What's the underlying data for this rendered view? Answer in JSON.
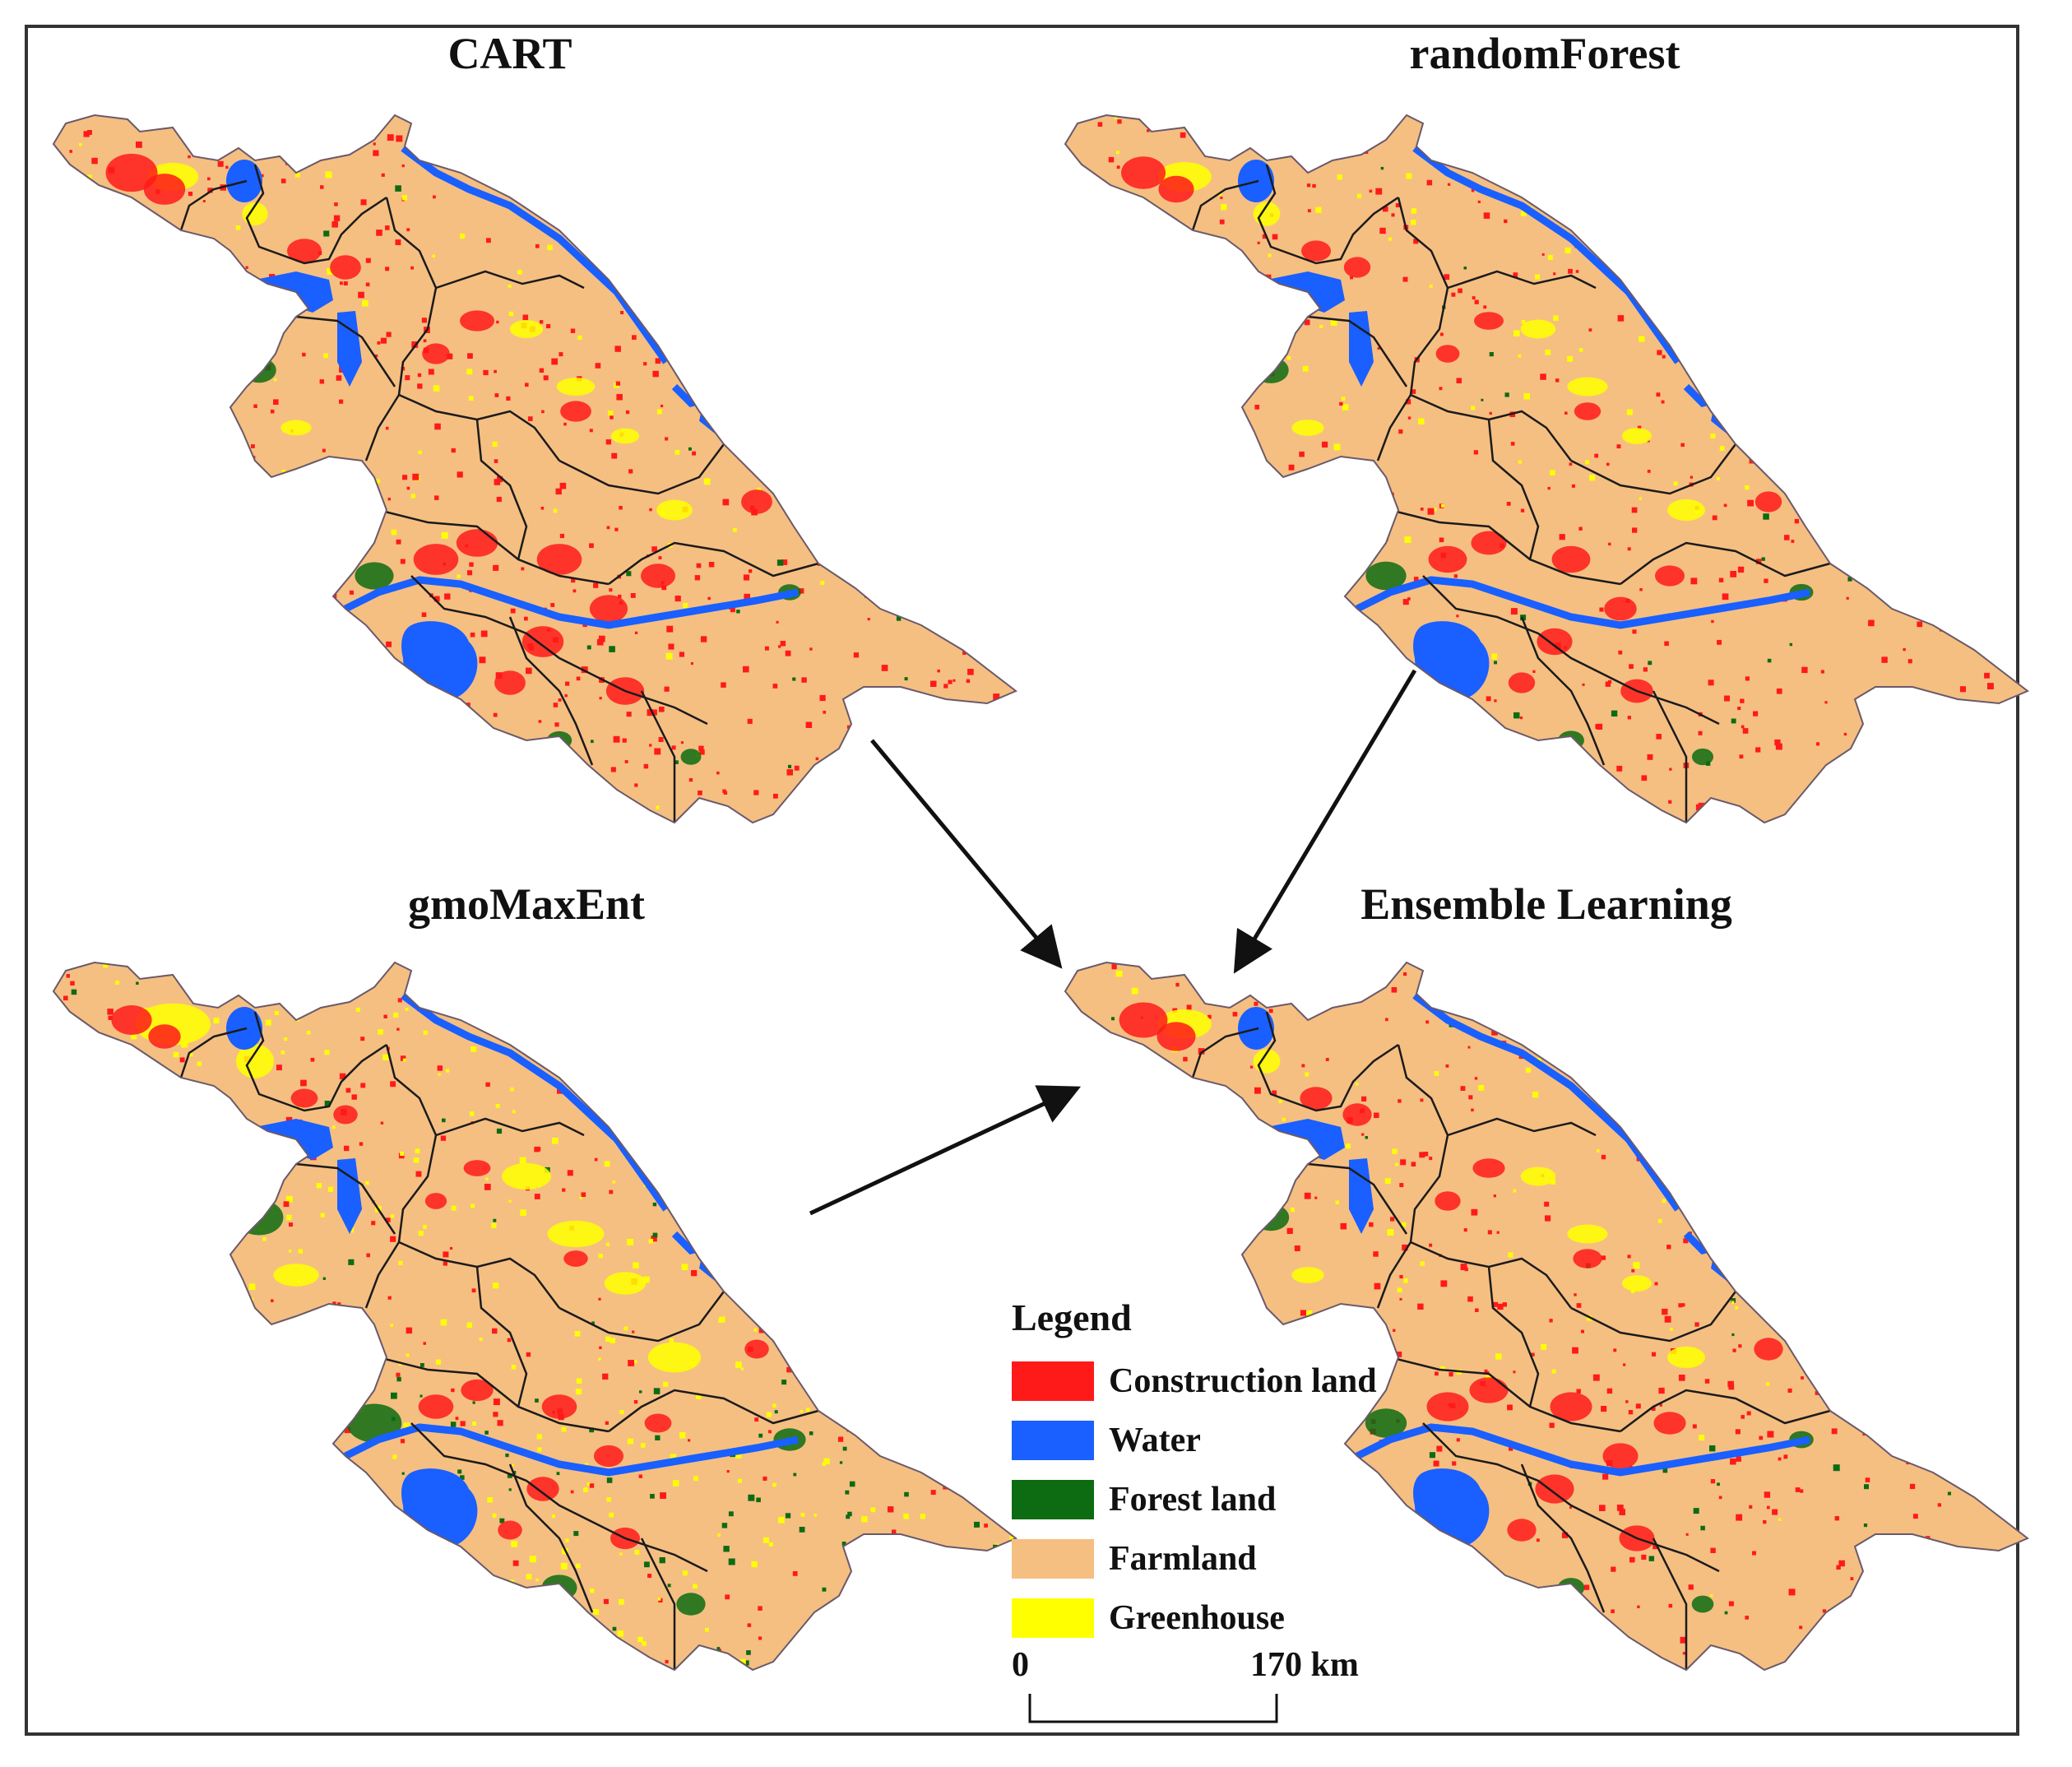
{
  "panels": [
    {
      "title": "CART"
    },
    {
      "title": "randomForest"
    },
    {
      "title": "gmoMaxEnt"
    },
    {
      "title": "Ensemble Learning"
    }
  ],
  "legend": {
    "title": "Legend",
    "items": [
      {
        "label": "Construction land",
        "color": "#ff1a1a"
      },
      {
        "label": "Water",
        "color": "#1a5fff"
      },
      {
        "label": "Forest land",
        "color": "#0d6b12"
      },
      {
        "label": "Farmland",
        "color": "#f5bf82"
      },
      {
        "label": "Greenhouse",
        "color": "#ffff00"
      }
    ]
  },
  "scale_bar": {
    "start_label": "0",
    "end_label": "170 km"
  },
  "colors": {
    "frame": "#333333",
    "boundary": "#1b1b1b",
    "arrow": "#111111"
  }
}
